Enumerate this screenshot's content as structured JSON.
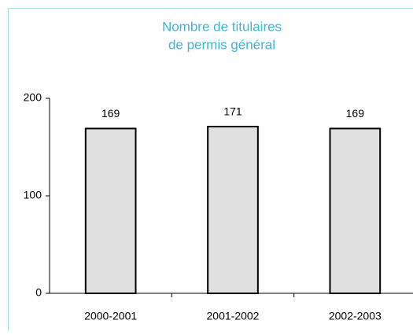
{
  "chart_data": {
    "type": "bar",
    "title": [
      "Nombre de titulaires",
      "de permis général"
    ],
    "categories": [
      "2000-2001",
      "2001-2002",
      "2002-2003"
    ],
    "values": [
      169,
      171,
      169
    ],
    "color": "#e0e0e0",
    "ylim": [
      0,
      200
    ],
    "yticks": [
      0,
      100,
      200
    ]
  }
}
